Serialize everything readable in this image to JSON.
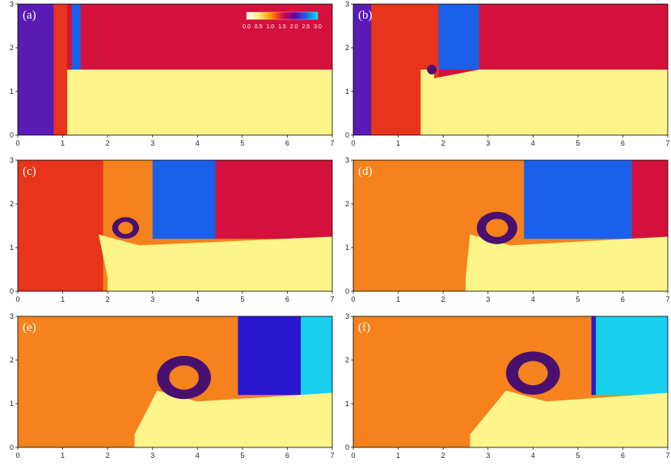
{
  "x_ticks": [
    "0",
    "1",
    "2",
    "3",
    "4",
    "5",
    "6",
    "7"
  ],
  "y_ticks": [
    "0",
    "1",
    "2",
    "3"
  ],
  "panels": [
    {
      "label": "(a)"
    },
    {
      "label": "(b)"
    },
    {
      "label": "(c)"
    },
    {
      "label": "(d)"
    },
    {
      "label": "(e)"
    },
    {
      "label": "(f)"
    }
  ],
  "colorbar": {
    "tick_labels": [
      "0.0",
      "0.5",
      "1.0",
      "1.5",
      "2.0",
      "2.5",
      "3.0"
    ],
    "colors": [
      "#ffffff",
      "#fff07a",
      "#ff9a00",
      "#e0103a",
      "#5a00b0",
      "#1f5ee8",
      "#00e0ff"
    ]
  },
  "colors": {
    "crimson": "#d4103c",
    "yellow": "#fdf58a",
    "orange": "#f5821c",
    "red": "#e8341a",
    "blue": "#1a60e8",
    "indigo": "#2a18d0",
    "violet": "#5a1bb4",
    "cyan": "#18cfee",
    "dark_purple": "#4a1070"
  }
}
